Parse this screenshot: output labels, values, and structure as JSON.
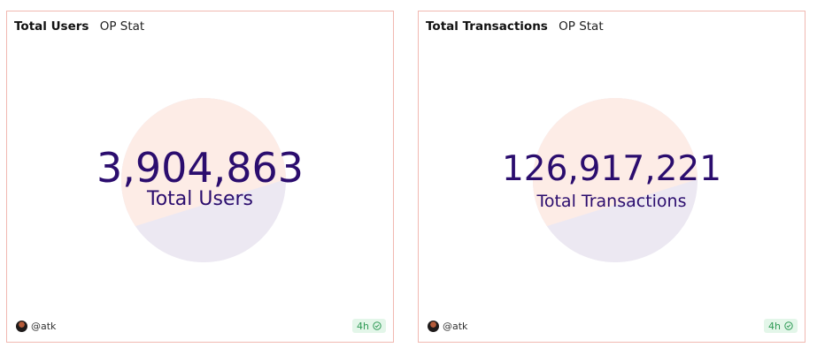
{
  "cards": [
    {
      "title": "Total Users",
      "subtitle": "OP Stat",
      "value": "3,904,863",
      "label": "Total Users",
      "author": "@atk",
      "age_badge": "4h"
    },
    {
      "title": "Total Transactions",
      "subtitle": "OP Stat",
      "value": "126,917,221",
      "label": "Total Transactions",
      "author": "@atk",
      "age_badge": "4h"
    }
  ],
  "colors": {
    "card_border": "#f1b8b1",
    "value_text": "#2b0d6e",
    "disc_top": "#fdece6",
    "disc_bottom": "#ece8f2",
    "badge_bg": "#e3f6e9",
    "badge_text": "#2f9a56"
  }
}
